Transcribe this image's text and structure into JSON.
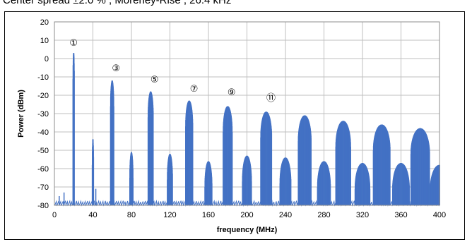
{
  "caption": "Center spread  ±2.0 % , Moreney-Rise , 26.4 kHz",
  "chart_data": {
    "type": "line",
    "title": "",
    "xlabel": "frequency (MHz)",
    "ylabel": "Power (dBm)",
    "xlim": [
      0,
      400
    ],
    "ylim": [
      -80,
      20
    ],
    "x_ticks": [
      0,
      40,
      80,
      120,
      160,
      200,
      240,
      280,
      320,
      360,
      400
    ],
    "y_ticks": [
      20,
      10,
      0,
      -10,
      -20,
      -30,
      -40,
      -50,
      -60,
      -70,
      -80
    ],
    "grid": true,
    "legend": "none",
    "series_color": "#4472C4",
    "noise_floor_dbm": -79,
    "peaks": [
      {
        "x": 20,
        "peak": 3,
        "width": 0.8
      },
      {
        "x": 40,
        "peak": -44,
        "width": 0.8
      },
      {
        "x": 60,
        "peak": -12,
        "width": 1.8
      },
      {
        "x": 80,
        "peak": -51,
        "width": 1.8
      },
      {
        "x": 100,
        "peak": -18,
        "width": 2.8
      },
      {
        "x": 120,
        "peak": -52,
        "width": 2.8
      },
      {
        "x": 140,
        "peak": -23,
        "width": 3.8
      },
      {
        "x": 160,
        "peak": -56,
        "width": 3.8
      },
      {
        "x": 180,
        "peak": -26,
        "width": 4.8
      },
      {
        "x": 200,
        "peak": -53,
        "width": 4.8
      },
      {
        "x": 220,
        "peak": -29,
        "width": 5.8
      },
      {
        "x": 240,
        "peak": -54,
        "width": 5.8
      },
      {
        "x": 260,
        "peak": -31,
        "width": 6.8
      },
      {
        "x": 280,
        "peak": -56,
        "width": 6.8
      },
      {
        "x": 300,
        "peak": -34,
        "width": 7.8
      },
      {
        "x": 320,
        "peak": -57,
        "width": 7.8
      },
      {
        "x": 340,
        "peak": -36,
        "width": 8.8
      },
      {
        "x": 360,
        "peak": -57,
        "width": 8.8
      },
      {
        "x": 380,
        "peak": -38,
        "width": 9.8
      },
      {
        "x": 400,
        "peak": -58,
        "width": 9.8
      }
    ],
    "minor_spurs": [
      {
        "x": 5,
        "peak": -75
      },
      {
        "x": 10,
        "peak": -73
      },
      {
        "x": 43,
        "peak": -71
      }
    ],
    "annotations": [
      {
        "text": "①",
        "x": 20,
        "y": 7
      },
      {
        "text": "③",
        "x": 64,
        "y": -7
      },
      {
        "text": "⑤",
        "x": 104,
        "y": -13
      },
      {
        "text": "⑦",
        "x": 145,
        "y": -18
      },
      {
        "text": "⑨",
        "x": 184,
        "y": -20
      },
      {
        "text": "⑪",
        "x": 225,
        "y": -23
      }
    ]
  }
}
